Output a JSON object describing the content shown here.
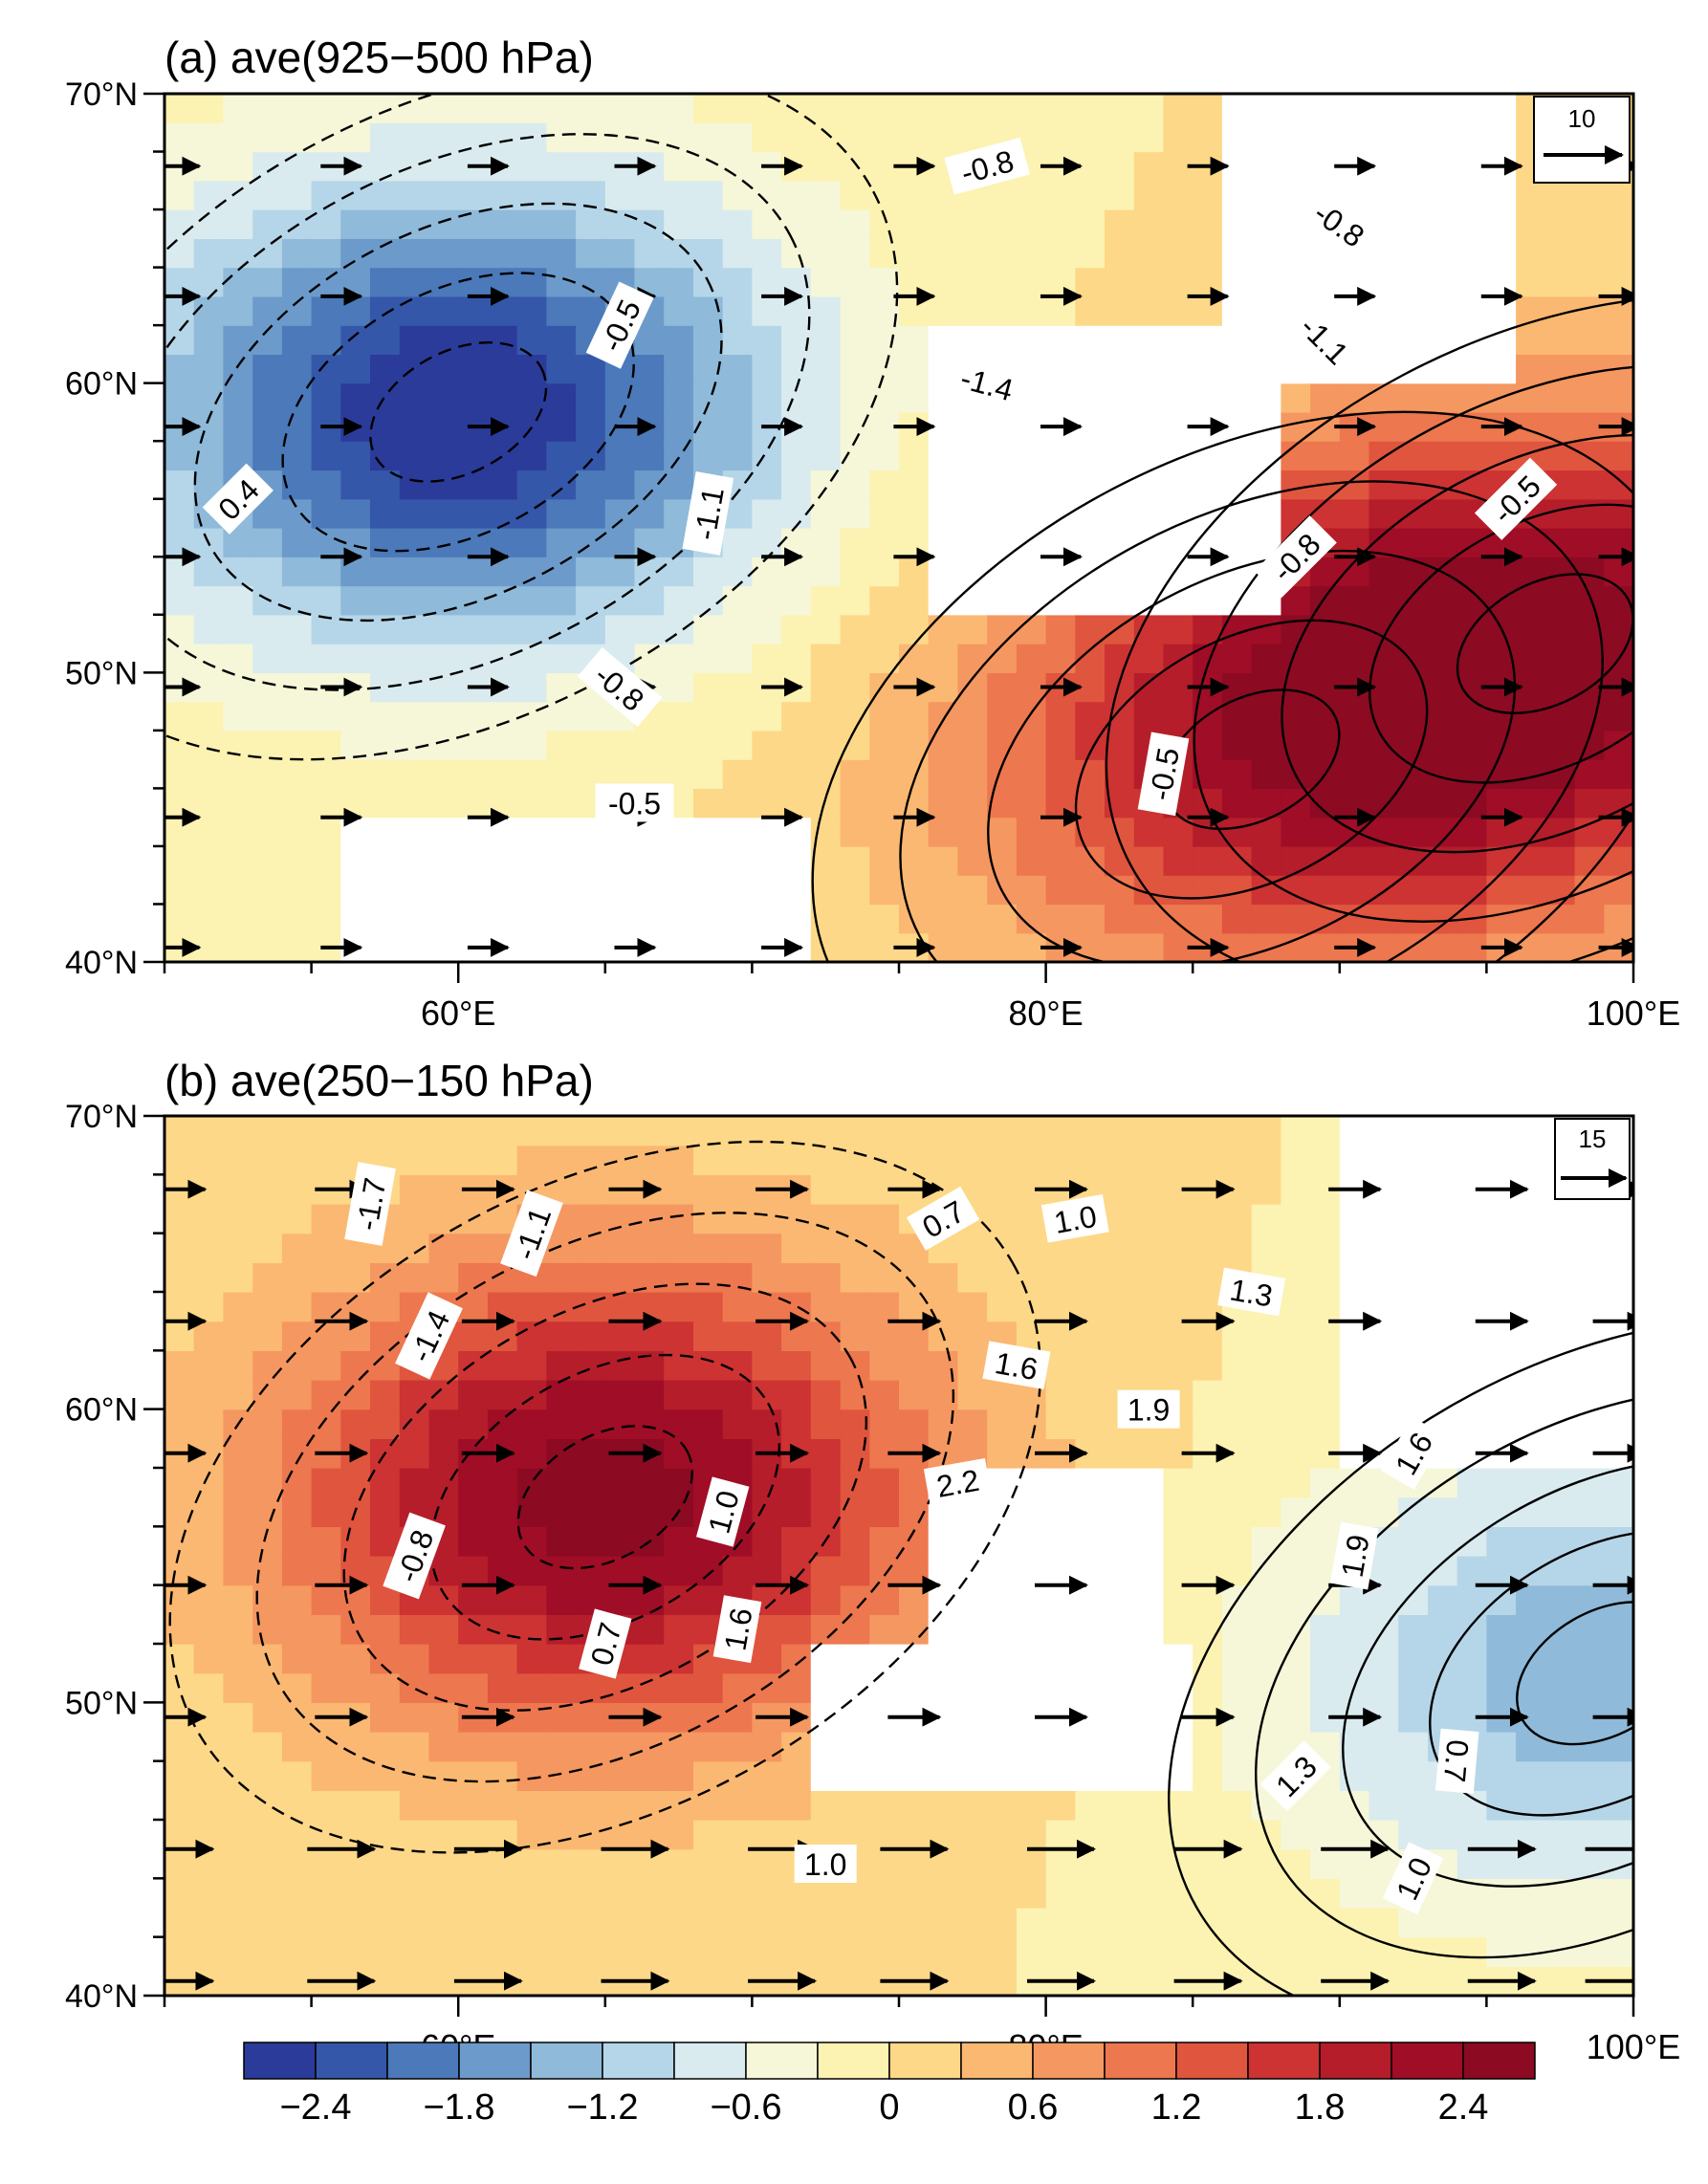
{
  "chart_data": [
    {
      "type": "heatmap",
      "title": "(a) ave(925−500 hPa)",
      "xlabel": "",
      "ylabel": "",
      "xlim": [
        50,
        100
      ],
      "ylim": [
        40,
        70
      ],
      "x_ticks": [
        60,
        80,
        100
      ],
      "x_tick_labels": [
        "60°E",
        "80°E",
        "100°E"
      ],
      "y_ticks": [
        40,
        50,
        60,
        70
      ],
      "y_tick_labels": [
        "40°N",
        "50°N",
        "60°N",
        "70°N"
      ],
      "field": {
        "centers": [
          {
            "lon": 60,
            "lat": 59,
            "value": -2.7
          },
          {
            "lon": 97,
            "lat": 51,
            "value": 2.5
          },
          {
            "lon": 87,
            "lat": 47,
            "value": 1.6
          }
        ],
        "insignificant_areas": [
          {
            "lon": [
              76,
              88
            ],
            "lat": [
              52,
              62
            ]
          },
          {
            "lon": [
              86,
              96
            ],
            "lat": [
              60,
              70
            ]
          },
          {
            "lon": [
              56,
              72
            ],
            "lat": [
              40,
              45
            ]
          }
        ]
      },
      "contour_labels": [
        {
          "text": "-0.8",
          "lon": 78,
          "lat": 67.5,
          "rotation": -15
        },
        {
          "text": "-0.8",
          "lon": 90,
          "lat": 65.5,
          "rotation": 35
        },
        {
          "text": "-0.5",
          "lon": 65.5,
          "lat": 62,
          "rotation": -65
        },
        {
          "text": "-1.4",
          "lon": 78,
          "lat": 60,
          "rotation": 15
        },
        {
          "text": "-1.1",
          "lon": 89.5,
          "lat": 61.5,
          "rotation": 45
        },
        {
          "text": "0.4",
          "lon": 52.5,
          "lat": 56,
          "rotation": -45
        },
        {
          "text": "-1.1",
          "lon": 68.5,
          "lat": 55.5,
          "rotation": -80
        },
        {
          "text": "-0.8",
          "lon": 88.5,
          "lat": 54,
          "rotation": -45
        },
        {
          "text": "-0.5",
          "lon": 96,
          "lat": 56,
          "rotation": -45
        },
        {
          "text": "-0.8",
          "lon": 65.5,
          "lat": 49.5,
          "rotation": 40
        },
        {
          "text": "-0.5",
          "lon": 84,
          "lat": 46.5,
          "rotation": -80
        },
        {
          "text": "-0.5",
          "lon": 66,
          "lat": 45.5,
          "rotation": 0
        }
      ],
      "reference_vector": {
        "label": "10"
      },
      "vectors": {
        "lon": [
          50.5,
          56,
          61,
          66,
          71,
          75.5,
          80.5,
          85.5,
          90.5,
          95.5,
          99.5
        ],
        "lat": [
          40.5,
          45,
          49.5,
          54,
          58.5,
          63,
          67.5
        ]
      }
    },
    {
      "type": "heatmap",
      "title": "(b) ave(250−150 hPa)",
      "xlabel": "",
      "ylabel": "",
      "xlim": [
        50,
        100
      ],
      "ylim": [
        40,
        70
      ],
      "x_ticks": [
        60,
        80,
        100
      ],
      "x_tick_labels": [
        "60°E",
        "80°E",
        "100°E"
      ],
      "y_ticks": [
        40,
        50,
        60,
        70
      ],
      "y_tick_labels": [
        "40°N",
        "50°N",
        "60°N",
        "70°N"
      ],
      "field": {
        "centers": [
          {
            "lon": 65,
            "lat": 57,
            "value": 2.6
          },
          {
            "lon": 99,
            "lat": 51,
            "value": -1.4
          }
        ],
        "insignificant_areas": [
          {
            "lon": [
              76,
              84
            ],
            "lat": [
              52,
              58
            ]
          },
          {
            "lon": [
              90,
              100
            ],
            "lat": [
              58,
              70
            ]
          },
          {
            "lon": [
              72,
              85
            ],
            "lat": [
              47,
              52
            ]
          }
        ]
      },
      "contour_labels": [
        {
          "text": "-1.7",
          "lon": 57,
          "lat": 67,
          "rotation": -80
        },
        {
          "text": "-1.1",
          "lon": 62.5,
          "lat": 66,
          "rotation": -70
        },
        {
          "text": "0.7",
          "lon": 76.5,
          "lat": 66.5,
          "rotation": -30
        },
        {
          "text": "1.0",
          "lon": 81,
          "lat": 66.5,
          "rotation": -10
        },
        {
          "text": "1.3",
          "lon": 87,
          "lat": 64,
          "rotation": 10
        },
        {
          "text": "-1.4",
          "lon": 59,
          "lat": 62.5,
          "rotation": -65
        },
        {
          "text": "1.6",
          "lon": 79,
          "lat": 61.5,
          "rotation": 10
        },
        {
          "text": "1.9",
          "lon": 83.5,
          "lat": 60,
          "rotation": 0
        },
        {
          "text": "1.6",
          "lon": 92.5,
          "lat": 58.5,
          "rotation": -60
        },
        {
          "text": "2.2",
          "lon": 77,
          "lat": 57.5,
          "rotation": -10
        },
        {
          "text": "1.0",
          "lon": 69,
          "lat": 56.5,
          "rotation": -75
        },
        {
          "text": "1.9",
          "lon": 90.5,
          "lat": 55,
          "rotation": -80
        },
        {
          "text": "-0.8",
          "lon": 58.5,
          "lat": 55,
          "rotation": -70
        },
        {
          "text": "1.6",
          "lon": 69.5,
          "lat": 52.5,
          "rotation": -80
        },
        {
          "text": "0.7",
          "lon": 65,
          "lat": 52,
          "rotation": -75
        },
        {
          "text": "0.7",
          "lon": 94,
          "lat": 48,
          "rotation": 95
        },
        {
          "text": "1.3",
          "lon": 88.5,
          "lat": 47.5,
          "rotation": -45
        },
        {
          "text": "1.0",
          "lon": 72.5,
          "lat": 44.5,
          "rotation": 0
        },
        {
          "text": "1.0",
          "lon": 92.5,
          "lat": 44,
          "rotation": -65
        }
      ],
      "reference_vector": {
        "label": "15"
      },
      "vectors": {
        "lon": [
          50.5,
          56,
          61,
          66,
          71,
          75.5,
          80.5,
          85.5,
          90.5,
          95.5,
          99.5
        ],
        "lat": [
          40.5,
          45,
          49.5,
          54,
          58.5,
          63,
          67.5
        ]
      }
    }
  ],
  "colorbar": {
    "levels": [
      -2.7,
      -2.4,
      -2.1,
      -1.8,
      -1.5,
      -1.2,
      -0.9,
      -0.6,
      -0.3,
      0,
      0.3,
      0.6,
      0.9,
      1.2,
      1.5,
      1.8,
      2.1,
      2.4,
      2.7
    ],
    "tick_labels": [
      "−2.4",
      "−1.8",
      "−1.2",
      "−0.6",
      "0",
      "0.6",
      "1.2",
      "1.8",
      "2.4"
    ],
    "tick_values": [
      -2.4,
      -1.8,
      -1.2,
      -0.6,
      0,
      0.6,
      1.2,
      1.8,
      2.4
    ],
    "colors": [
      "#2b3b9a",
      "#3557aa",
      "#4b79b9",
      "#6c9bcb",
      "#8fbad9",
      "#b5d6e8",
      "#d9ebee",
      "#f5f7d8",
      "#fcf2b2",
      "#fdd888",
      "#fbb872",
      "#f59760",
      "#ed774e",
      "#e0553e",
      "#cc3332",
      "#b51d2a",
      "#a00d26",
      "#8c0a22"
    ]
  }
}
